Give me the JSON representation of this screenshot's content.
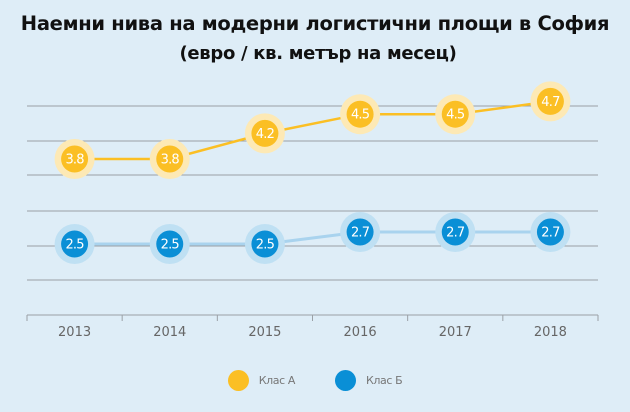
{
  "chart_data": {
    "type": "line",
    "title": "Наемни нива на модерни логистични площи в София",
    "subtitle": "(евро / кв. метър на месец)",
    "xlabel": "",
    "ylabel": "",
    "categories": [
      "2013",
      "2014",
      "2015",
      "2016",
      "2017",
      "2018"
    ],
    "series": [
      {
        "name": "Клас А",
        "color": "#fbbf24",
        "halo": "#fde9b5",
        "values": [
          3.8,
          3.8,
          4.2,
          4.5,
          4.5,
          4.7
        ],
        "labels": [
          "3.8",
          "3.8",
          "4.2",
          "4.5",
          "4.5",
          "4.7"
        ]
      },
      {
        "name": "Клас Б",
        "color": "#0a8fd6",
        "halo": "#bfe0f3",
        "values": [
          2.5,
          2.5,
          2.5,
          2.7,
          2.7,
          2.7
        ],
        "labels": [
          "2.5",
          "2.5",
          "2.5",
          "2.7",
          "2.7",
          "2.7"
        ]
      }
    ],
    "grid": true,
    "legend_position": "bottom-center"
  }
}
